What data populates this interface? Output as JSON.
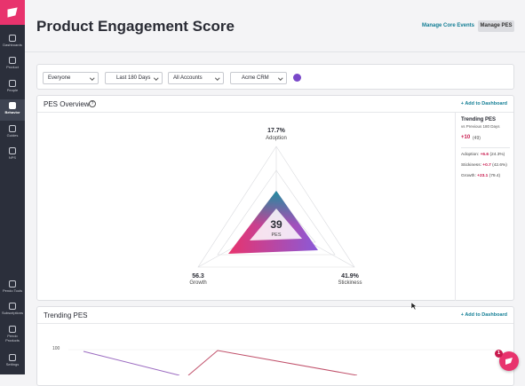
{
  "sidebar": {
    "items": [
      {
        "label": "Dashboards"
      },
      {
        "label": "Product"
      },
      {
        "label": "People"
      },
      {
        "label": "Behavior"
      },
      {
        "label": "Guides"
      },
      {
        "label": "NPS"
      },
      {
        "label": "Pendo Tools"
      },
      {
        "label": "Subscriptions"
      },
      {
        "label": "Pendo\nProducts"
      },
      {
        "label": "Settings"
      }
    ]
  },
  "header": {
    "title": "Product Engagement Score",
    "manage_core_events": "Manage Core Events",
    "manage_pes": "Manage PES"
  },
  "filters": [
    "Everyone",
    "Last 180 Days",
    "All Accounts",
    "Acme CRM"
  ],
  "overview": {
    "title": "PES Overview",
    "add": "+ Add to Dashboard",
    "adoption": {
      "value": "17.7%",
      "label": "Adoption"
    },
    "growth": {
      "value": "56.3",
      "label": "Growth"
    },
    "stickiness": {
      "value": "41.9%",
      "label": "Stickiness"
    },
    "score": "39",
    "score_label": "PES",
    "trending": {
      "title": "Trending PES",
      "subtitle": "vs Previous 180 Days",
      "change": "+10",
      "previous": "(49)",
      "rows": [
        {
          "label": "Adoption:",
          "change": "+6.6",
          "value": "(24.3%)"
        },
        {
          "label": "Stickiness:",
          "change": "+0.7",
          "value": "(42.6%)"
        },
        {
          "label": "Growth:",
          "change": "+23.1",
          "value": "(79.4)"
        }
      ]
    }
  },
  "trending": {
    "title": "Trending PES",
    "add": "+ Add to Dashboard",
    "ytick": "100"
  },
  "notification_badge": "1"
}
